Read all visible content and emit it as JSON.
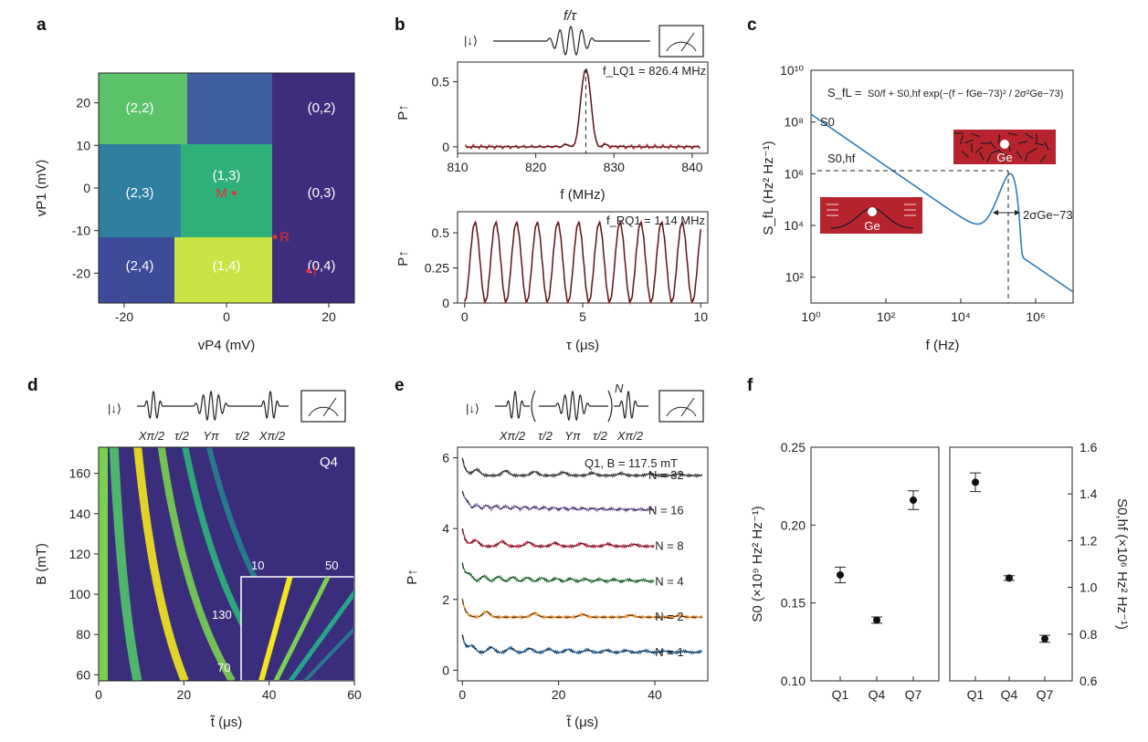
{
  "panels": {
    "a": {
      "label": "a"
    },
    "b": {
      "label": "b"
    },
    "c": {
      "label": "c"
    },
    "d": {
      "label": "d"
    },
    "e": {
      "label": "e"
    },
    "f": {
      "label": "f"
    }
  },
  "chart_data": [
    {
      "id": "a",
      "type": "heatmap",
      "xlabel": "vP4 (mV)",
      "ylabel": "vP1 (mV)",
      "xlim": [
        -25,
        25
      ],
      "ylim": [
        -27,
        27
      ],
      "xticks": [
        -20,
        0,
        20
      ],
      "yticks": [
        -20,
        -10,
        0,
        10,
        20
      ],
      "regions": [
        "(2,2)",
        "(0,2)",
        "(2,3)",
        "(1,3)",
        "(0,3)",
        "(2,4)",
        "(1,4)",
        "(0,4)"
      ],
      "points": [
        {
          "name": "M",
          "x": 1.5,
          "y": -1.2
        },
        {
          "name": "R",
          "x": 9.5,
          "y": -11.5
        },
        {
          "name": "I",
          "x": 16,
          "y": -19.5
        }
      ]
    },
    {
      "id": "b-top",
      "type": "line",
      "pulse_label": "f/τ",
      "ket": "|↓⟩",
      "annotation": "f_LQ1 = 826.4 MHz",
      "xlabel": "f (MHz)",
      "ylabel": "P↑",
      "xlim": [
        810,
        842
      ],
      "ylim": [
        -0.05,
        0.65
      ],
      "xticks": [
        810,
        820,
        830,
        840
      ],
      "yticks": [
        "0",
        "0.5"
      ],
      "center": 826.4
    },
    {
      "id": "b-bottom",
      "type": "line",
      "annotation": "f_RQ1 = 1.14 MHz",
      "xlabel": "τ (μs)",
      "ylabel": "P↑",
      "xlim": [
        -0.3,
        10.3
      ],
      "ylim": [
        0,
        0.65
      ],
      "xticks": [
        0,
        5,
        10
      ],
      "yticks": [
        "0",
        "0.25",
        "0.5"
      ],
      "frequency_mhz": 1.14
    },
    {
      "id": "c",
      "type": "line",
      "formula_lhs": "S_fL =",
      "formula_rhs": "S0/f + S0,hf exp(−(f − fGe−73)² / 2σ²Ge−73)",
      "s0_label": "S0",
      "s0hf_label": "S0,hf",
      "sigma_label": "2σGe−73",
      "inset_label": "Ge",
      "xlabel": "f (Hz)",
      "ylabel": "S_fL (Hz² Hz⁻¹)",
      "xscale": "log",
      "yscale": "log",
      "xticks": [
        "10⁰",
        "10²",
        "10⁴",
        "10⁶"
      ],
      "yticks": [
        "10²",
        "10⁴",
        "10⁶",
        "10⁸",
        "10¹⁰"
      ]
    },
    {
      "id": "d",
      "type": "heatmap",
      "ket": "|↓⟩",
      "pulse_labels": [
        "Xπ/2",
        "τ/2",
        "Yπ",
        "τ/2",
        "Xπ/2"
      ],
      "tag": "Q4",
      "xlabel": "t̃ (μs)",
      "ylabel": "B (mT)",
      "xlim": [
        0,
        60
      ],
      "ylim": [
        57,
        173
      ],
      "xticks": [
        0,
        20,
        40,
        60
      ],
      "yticks": [
        60,
        80,
        100,
        120,
        140,
        160
      ],
      "inset_xticks": [
        "10",
        "50"
      ],
      "inset_yticks": [
        "130",
        "70"
      ]
    },
    {
      "id": "e",
      "type": "line",
      "ket": "|↓⟩",
      "pulse_labels": [
        "Xπ/2",
        "τ/2",
        "Yπ",
        "τ/2",
        "Xπ/2"
      ],
      "repeat_label": "N",
      "title": "Q1, B = 117.5 mT",
      "xlabel": "t̃ (μs)",
      "ylabel": "P↑",
      "xlim": [
        -1,
        51
      ],
      "ylim": [
        -0.3,
        6.3
      ],
      "xticks": [
        0,
        20,
        40
      ],
      "yticks": [
        0,
        2,
        4,
        6
      ],
      "series": [
        {
          "name": "N = 1",
          "offset": 0,
          "color": "#2b6aa0"
        },
        {
          "name": "N = 2",
          "offset": 1,
          "color": "#f28e2b"
        },
        {
          "name": "N = 4",
          "offset": 2,
          "color": "#3d8f4f"
        },
        {
          "name": "N = 8",
          "offset": 3,
          "color": "#c9304a"
        },
        {
          "name": "N = 16",
          "offset": 4,
          "color": "#8a72b8"
        },
        {
          "name": "N = 32",
          "offset": 5,
          "color": "#555555"
        }
      ]
    },
    {
      "id": "f-left",
      "type": "scatter",
      "categories": [
        "Q1",
        "Q4",
        "Q7"
      ],
      "values": [
        0.168,
        0.139,
        0.216
      ],
      "errors": [
        0.005,
        0.002,
        0.006
      ],
      "ylabel": "S0 (×10⁹ Hz² Hz⁻¹)",
      "ylim": [
        0.1,
        0.25
      ],
      "yticks": [
        "0.10",
        "0.15",
        "0.20",
        "0.25"
      ]
    },
    {
      "id": "f-right",
      "type": "scatter",
      "categories": [
        "Q1",
        "Q4",
        "Q7"
      ],
      "values": [
        1.45,
        1.04,
        0.78
      ],
      "errors": [
        0.04,
        0.01,
        0.015
      ],
      "ylabel": "S0,hf (×10⁶ Hz² Hz⁻¹)",
      "ylim": [
        0.6,
        1.6
      ],
      "yticks": [
        "0.6",
        "0.8",
        "1.0",
        "1.2",
        "1.4",
        "1.6"
      ]
    }
  ]
}
